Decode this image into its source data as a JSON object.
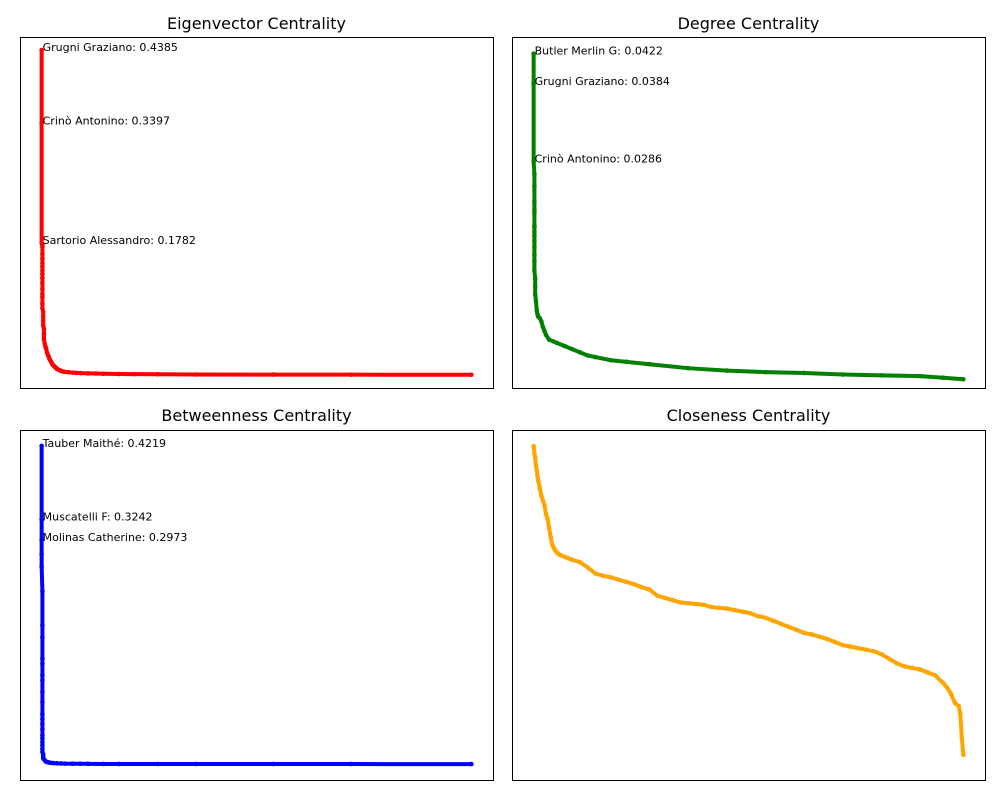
{
  "chart_data": [
    {
      "type": "scatter",
      "title": "Eigenvector Centrality",
      "color": "#ff0000",
      "xticks": false,
      "yticks": false,
      "ylim": [
        -0.0177,
        0.4562
      ],
      "xlim": [
        -28,
        584
      ],
      "points_x": [
        0,
        0,
        0,
        1,
        1,
        1,
        1,
        1,
        1,
        1,
        1,
        1,
        1,
        1,
        1,
        1,
        1,
        1,
        2,
        2,
        2,
        2,
        3,
        3,
        3,
        4,
        5,
        6,
        7,
        8,
        9,
        10,
        11,
        12,
        13,
        14,
        15,
        16,
        17,
        18,
        19,
        20,
        22,
        24,
        26,
        28,
        30,
        35,
        40,
        45,
        50,
        60,
        70,
        80,
        100,
        120,
        150,
        200,
        300,
        400,
        556
      ],
      "points_y": [
        0.4385,
        0.3397,
        0.1782,
        0.1755,
        0.173,
        0.163,
        0.157,
        0.151,
        0.146,
        0.141,
        0.136,
        0.131,
        0.124,
        0.116,
        0.109,
        0.105,
        0.096,
        0.09,
        0.085,
        0.079,
        0.073,
        0.067,
        0.062,
        0.055,
        0.048,
        0.042,
        0.038,
        0.035,
        0.03,
        0.027,
        0.025,
        0.022,
        0.02,
        0.018,
        0.016,
        0.014,
        0.013,
        0.012,
        0.011,
        0.01,
        0.009,
        0.008,
        0.007,
        0.006,
        0.005,
        0.0045,
        0.004,
        0.0035,
        0.003,
        0.0027,
        0.0024,
        0.002,
        0.0018,
        0.0015,
        0.0012,
        0.001,
        0.0008,
        0.0005,
        0.0004,
        0.0003,
        0.0002
      ],
      "annotations": [
        {
          "text": "Grugni Graziano: 0.4385",
          "x": 0,
          "y": 0.4385
        },
        {
          "text": "Crinò Antonino: 0.3397",
          "x": 0,
          "y": 0.3397
        },
        {
          "text": "Sartorio Alessandro: 0.1782",
          "x": 0,
          "y": 0.1782
        }
      ]
    },
    {
      "type": "scatter",
      "title": "Degree Centrality",
      "color": "#008000",
      "xticks": false,
      "yticks": false,
      "ylim": [
        0.0,
        0.0443
      ],
      "xlim": [
        -28,
        584
      ],
      "points_x": [
        0,
        0,
        0,
        1,
        1,
        1,
        1,
        1,
        1,
        1,
        1,
        1,
        1,
        1,
        1,
        1,
        1,
        2,
        2,
        2,
        3,
        4,
        5,
        6,
        8,
        10,
        12,
        14,
        16,
        20,
        25,
        30,
        40,
        50,
        60,
        70,
        80,
        100,
        120,
        150,
        200,
        250,
        300,
        350,
        400,
        450,
        500,
        530,
        556
      ],
      "points_y": [
        0.0422,
        0.0384,
        0.0286,
        0.027,
        0.0255,
        0.0235,
        0.0225,
        0.0222,
        0.0205,
        0.0203,
        0.0197,
        0.0192,
        0.0185,
        0.0178,
        0.0168,
        0.016,
        0.0148,
        0.0138,
        0.0128,
        0.0118,
        0.011,
        0.0098,
        0.0093,
        0.009,
        0.0088,
        0.0084,
        0.0077,
        0.0072,
        0.0067,
        0.0061,
        0.0059,
        0.0057,
        0.0053,
        0.0049,
        0.0045,
        0.0041,
        0.0039,
        0.0035,
        0.0033,
        0.003,
        0.0025,
        0.0022,
        0.002,
        0.0019,
        0.0017,
        0.0016,
        0.0015,
        0.0013,
        0.0011
      ],
      "annotations": [
        {
          "text": "Butler Merlin G: 0.0422",
          "x": 0,
          "y": 0.0422
        },
        {
          "text": "Grugni Graziano: 0.0384",
          "x": 0,
          "y": 0.0384
        },
        {
          "text": "Crinò Antonino: 0.0286",
          "x": 0,
          "y": 0.0286
        }
      ]
    },
    {
      "type": "scatter",
      "title": "Betweenness Centrality",
      "color": "#0000ff",
      "xticks": false,
      "yticks": false,
      "ylim": [
        -0.0211,
        0.443
      ],
      "xlim": [
        -28,
        584
      ],
      "points_x": [
        0,
        0,
        0,
        0,
        0,
        1,
        1,
        1,
        1,
        1,
        1,
        1,
        1,
        1,
        1,
        1,
        1,
        1,
        1,
        1,
        1,
        1,
        1,
        1,
        2,
        2,
        2,
        3,
        4,
        5,
        6,
        8,
        10,
        12,
        15,
        20,
        25,
        30,
        40,
        50,
        60,
        80,
        100,
        150,
        200,
        300,
        400,
        556
      ],
      "points_y": [
        0.4219,
        0.3242,
        0.2973,
        0.278,
        0.262,
        0.229,
        0.184,
        0.168,
        0.14,
        0.133,
        0.118,
        0.111,
        0.096,
        0.082,
        0.066,
        0.06,
        0.053,
        0.046,
        0.038,
        0.034,
        0.029,
        0.025,
        0.02,
        0.016,
        0.013,
        0.01,
        0.008,
        0.0065,
        0.005,
        0.004,
        0.003,
        0.0025,
        0.002,
        0.0016,
        0.0013,
        0.001,
        0.0008,
        0.0006,
        0.0005,
        0.0004,
        0.0003,
        0.0002,
        0.00015,
        0.0001,
        8e-05,
        5e-05,
        3e-05,
        0.0
      ],
      "annotations": [
        {
          "text": "Tauber Maithé: 0.4219",
          "x": 0,
          "y": 0.4219
        },
        {
          "text": "Muscatelli F: 0.3242",
          "x": 0,
          "y": 0.3242
        },
        {
          "text": "Molinas Catherine: 0.2973",
          "x": 0,
          "y": 0.2973
        }
      ]
    },
    {
      "type": "scatter",
      "title": "Closeness Centrality",
      "color": "#ffa500",
      "xticks": false,
      "yticks": false,
      "ylim": [
        0.1984,
        0.4283
      ],
      "xlim": [
        -28,
        584
      ],
      "points_x": [
        0,
        1,
        2,
        3,
        4,
        5,
        6,
        8,
        10,
        12,
        14,
        16,
        18,
        20,
        22,
        24,
        26,
        28,
        30,
        32,
        35,
        40,
        45,
        50,
        60,
        70,
        80,
        90,
        100,
        110,
        120,
        130,
        140,
        150,
        160,
        170,
        180,
        190,
        200,
        210,
        220,
        230,
        240,
        250,
        260,
        270,
        280,
        290,
        300,
        310,
        320,
        330,
        340,
        350,
        360,
        370,
        380,
        390,
        400,
        410,
        420,
        430,
        440,
        450,
        460,
        470,
        480,
        490,
        500,
        510,
        520,
        530,
        535,
        540,
        545,
        550,
        552,
        554,
        556
      ],
      "points_y": [
        0.4177,
        0.413,
        0.41,
        0.405,
        0.402,
        0.398,
        0.395,
        0.39,
        0.385,
        0.382,
        0.379,
        0.373,
        0.37,
        0.364,
        0.358,
        0.353,
        0.351,
        0.349,
        0.348,
        0.347,
        0.346,
        0.345,
        0.344,
        0.343,
        0.3415,
        0.338,
        0.334,
        0.3325,
        0.3315,
        0.33,
        0.3285,
        0.327,
        0.325,
        0.3235,
        0.3195,
        0.318,
        0.3165,
        0.315,
        0.3145,
        0.314,
        0.3135,
        0.312,
        0.3115,
        0.311,
        0.31,
        0.309,
        0.308,
        0.306,
        0.305,
        0.303,
        0.301,
        0.299,
        0.297,
        0.295,
        0.294,
        0.2925,
        0.291,
        0.289,
        0.287,
        0.286,
        0.285,
        0.284,
        0.283,
        0.281,
        0.278,
        0.275,
        0.273,
        0.272,
        0.271,
        0.269,
        0.267,
        0.262,
        0.259,
        0.255,
        0.249,
        0.247,
        0.242,
        0.226,
        0.215
      ]
    }
  ]
}
